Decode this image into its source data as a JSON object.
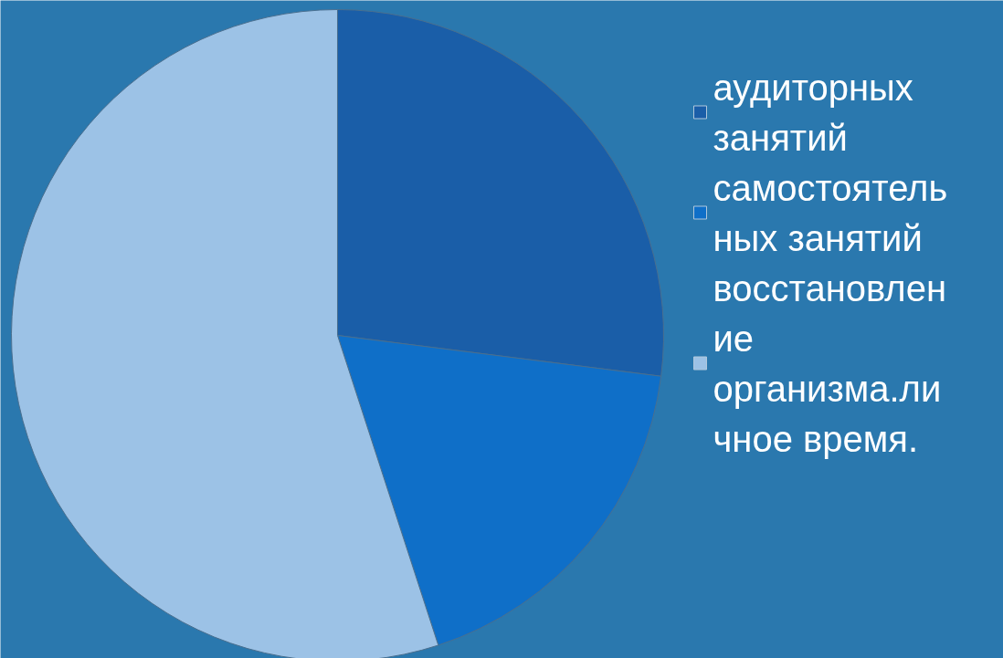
{
  "chart_data": {
    "type": "pie",
    "categories": [
      "аудиторных занятий",
      "самостоятельных занятий",
      "восстановление организма.личное время."
    ],
    "values": [
      27,
      18,
      55
    ],
    "colors": [
      "#1a5ea8",
      "#0f6fc8",
      "#9cc2e6"
    ],
    "legend": "right"
  }
}
